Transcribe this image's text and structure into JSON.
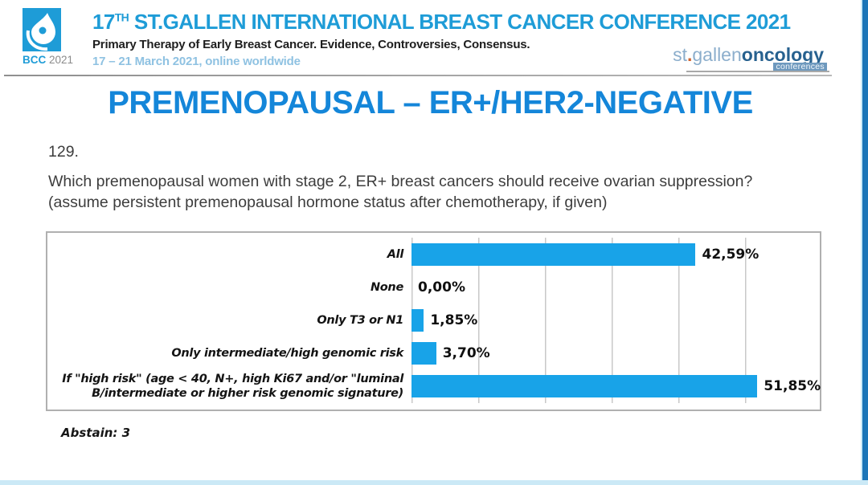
{
  "header": {
    "logo": {
      "badge_org": "BCC",
      "badge_year": "2021"
    },
    "title_prefix": "17",
    "title_superscript": "TH",
    "title_rest": " ST.GALLEN INTERNATIONAL BREAST CANCER CONFERENCE 2021",
    "subtitle": "Primary Therapy of Early Breast Cancer. Evidence, Controversies, Consensus.",
    "date_line": "17 – 21 March 2021, online worldwide",
    "right_logo": {
      "st": "st",
      "dot": ".",
      "gallen": "gallen",
      "oncology": "oncology",
      "conferences": "conferences"
    }
  },
  "slide": {
    "title": "PREMENOPAUSAL – ER+/HER2-NEGATIVE",
    "question_number": "129.",
    "question_text": "Which premenopausal women with stage 2, ER+ breast cancers should receive ovarian suppression? (assume persistent premenopausal hormone status after chemotherapy, if given)",
    "abstain_note": "Abstain: 3"
  },
  "chart_data": {
    "type": "bar",
    "orientation": "horizontal",
    "title": "",
    "categories": [
      "All",
      "None",
      "Only T3 or N1",
      "Only intermediate/high genomic risk",
      "If \"high risk\" (age < 40, N+, high Ki67 and/or \"luminal B/intermediate or higher risk genomic signature)"
    ],
    "values": [
      42.59,
      0.0,
      1.85,
      3.7,
      51.85
    ],
    "value_labels": [
      "42,59%",
      "0,00%",
      "1,85%",
      "3,70%",
      "51,85%"
    ],
    "xlim": [
      0,
      60
    ],
    "gridline_interval": 10,
    "grid": true,
    "legend": false,
    "bar_color": "#18a3e8",
    "gridline_color": "#c8c8c8"
  },
  "colors": {
    "header_blue": "#1e9cd7",
    "title_blue": "#1486d9",
    "bar_blue": "#18a3e8",
    "date_light_blue": "#8fc2e2",
    "edge_strip_blue": "#1b76b8"
  }
}
